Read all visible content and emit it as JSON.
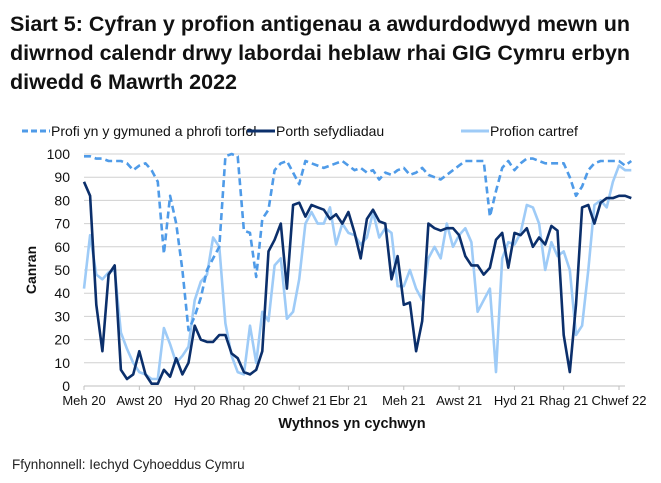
{
  "title": "Siart 5: Cyfran y profion antigenau a awdurdodwyd mewn un diwrnod calendr drwy labordai heblaw rhai GIG Cymru erbyn diwedd 6 Mawrth 2022",
  "source": "Ffynhonnell: Iechyd Cyhoeddus Cymru",
  "colors": {
    "community": "#4f9be8",
    "institutions": "#0b2f6b",
    "home": "#9ecbf7",
    "grid": "#d0d0d0",
    "axis": "#bfbfbf"
  },
  "chart_data": {
    "type": "line",
    "title": "Siart 5: Cyfran y profion antigenau a awdurdodwyd mewn un diwrnod calendr drwy labordai heblaw rhai GIG Cymru erbyn diwedd 6 Mawrth 2022",
    "xlabel": "Wythnos yn cychwyn",
    "ylabel": "Canran",
    "ylim": [
      0,
      100
    ],
    "yticks": [
      0,
      10,
      20,
      30,
      40,
      50,
      60,
      70,
      80,
      90,
      100
    ],
    "grid": true,
    "legend_position": "top",
    "x_tick_labels": [
      "Meh 20",
      "Awst 20",
      "Hyd 20",
      "Rhag 20",
      "Chwef 21",
      "Ebr 21",
      "Meh 21",
      "Awst 21",
      "Hyd 21",
      "Rhag 21",
      "Chwef 22"
    ],
    "x_tick_week_index": [
      0,
      9,
      18,
      26,
      35,
      43,
      52,
      61,
      70,
      78,
      87
    ],
    "n_weeks": 90,
    "series": [
      {
        "name": "Profi yn y gymuned a phrofi torfol",
        "style": "dashed",
        "values": [
          99,
          99,
          98,
          98,
          97,
          97,
          97,
          96,
          93,
          95,
          96,
          93,
          88,
          57,
          82,
          70,
          50,
          24,
          30,
          38,
          50,
          55,
          60,
          99,
          100,
          99,
          67,
          66,
          47,
          72,
          76,
          93,
          96,
          97,
          92,
          87,
          97,
          96,
          95,
          94,
          95,
          96,
          97,
          95,
          93,
          94,
          92,
          93,
          89,
          92,
          91,
          93,
          94,
          91,
          92,
          94,
          91,
          90,
          89,
          91,
          93,
          95,
          97,
          97,
          97,
          97,
          73,
          84,
          94,
          97,
          93,
          96,
          98,
          98,
          97,
          96,
          96,
          96,
          96,
          90,
          82,
          86,
          93,
          96,
          97,
          97,
          97,
          97,
          95,
          97
        ]
      },
      {
        "name": "Porth sefydliadau",
        "style": "solid",
        "values": [
          88,
          82,
          35,
          15,
          48,
          52,
          7,
          3,
          5,
          15,
          5,
          1,
          1,
          7,
          4,
          12,
          5,
          10,
          26,
          20,
          19,
          19,
          22,
          22,
          14,
          12,
          6,
          5,
          7,
          15,
          58,
          63,
          70,
          42,
          78,
          79,
          73,
          78,
          77,
          76,
          72,
          74,
          70,
          75,
          66,
          55,
          72,
          76,
          71,
          70,
          46,
          56,
          35,
          36,
          15,
          28,
          70,
          68,
          67,
          68,
          68,
          65,
          56,
          52,
          52,
          48,
          51,
          63,
          66,
          51,
          66,
          65,
          68,
          60,
          64,
          61,
          69,
          67,
          22,
          6,
          35,
          77,
          78,
          70,
          79,
          81,
          81,
          82,
          82,
          81
        ]
      },
      {
        "name": "Profion cartref",
        "style": "solid",
        "values": [
          42,
          65,
          48,
          46,
          49,
          50,
          23,
          16,
          10,
          6,
          5,
          3,
          3,
          25,
          18,
          10,
          13,
          17,
          37,
          45,
          48,
          64,
          60,
          27,
          13,
          6,
          5,
          26,
          10,
          32,
          28,
          52,
          55,
          29,
          32,
          46,
          70,
          75,
          70,
          70,
          77,
          61,
          70,
          66,
          65,
          61,
          64,
          75,
          64,
          68,
          66,
          43,
          43,
          50,
          42,
          37,
          55,
          60,
          55,
          70,
          60,
          65,
          68,
          62,
          32,
          37,
          42,
          6,
          55,
          62,
          61,
          66,
          78,
          77,
          70,
          50,
          62,
          56,
          58,
          50,
          22,
          26,
          50,
          78,
          80,
          77,
          88,
          95,
          93,
          93
        ]
      }
    ]
  },
  "legend": {
    "items": [
      {
        "label": "Profi yn y gymuned a phrofi torfol"
      },
      {
        "label": "Porth sefydliadau"
      },
      {
        "label": "Profion cartref"
      }
    ]
  },
  "axes": {
    "y_label": "Canran",
    "x_label": "Wythnos yn cychwyn"
  }
}
